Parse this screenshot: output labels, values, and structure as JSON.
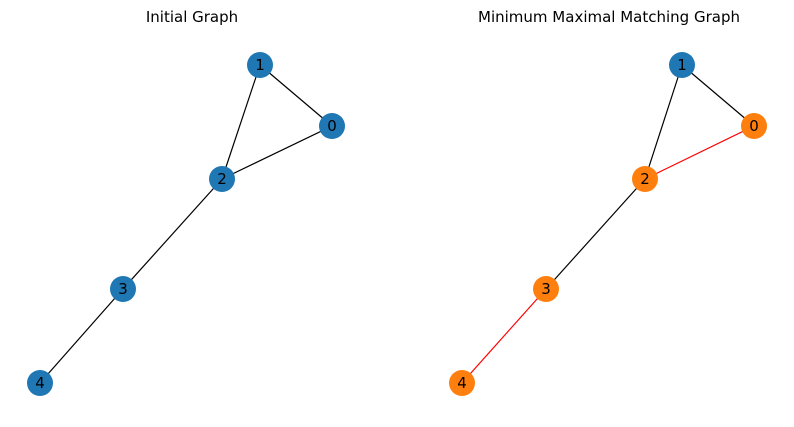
{
  "graphs": [
    {
      "title": "Initial Graph",
      "nodes": [
        {
          "id": "0",
          "color": "#1f77b4"
        },
        {
          "id": "1",
          "color": "#1f77b4"
        },
        {
          "id": "2",
          "color": "#1f77b4"
        },
        {
          "id": "3",
          "color": "#1f77b4"
        },
        {
          "id": "4",
          "color": "#1f77b4"
        }
      ],
      "edges": [
        {
          "from": "1",
          "to": "0",
          "color": "#000000"
        },
        {
          "from": "1",
          "to": "2",
          "color": "#000000"
        },
        {
          "from": "0",
          "to": "2",
          "color": "#000000"
        },
        {
          "from": "2",
          "to": "3",
          "color": "#000000"
        },
        {
          "from": "3",
          "to": "4",
          "color": "#000000"
        }
      ]
    },
    {
      "title": "Minimum Maximal Matching Graph",
      "nodes": [
        {
          "id": "0",
          "color": "#ff7f0e"
        },
        {
          "id": "1",
          "color": "#1f77b4"
        },
        {
          "id": "2",
          "color": "#ff7f0e"
        },
        {
          "id": "3",
          "color": "#ff7f0e"
        },
        {
          "id": "4",
          "color": "#ff7f0e"
        }
      ],
      "edges": [
        {
          "from": "1",
          "to": "0",
          "color": "#000000"
        },
        {
          "from": "1",
          "to": "2",
          "color": "#000000"
        },
        {
          "from": "0",
          "to": "2",
          "color": "#ff0000"
        },
        {
          "from": "2",
          "to": "3",
          "color": "#000000"
        },
        {
          "from": "3",
          "to": "4",
          "color": "#ff0000"
        }
      ]
    }
  ]
}
